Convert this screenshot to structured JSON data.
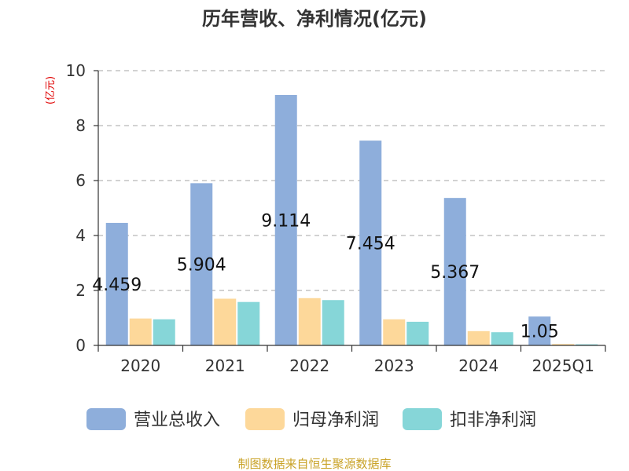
{
  "chart_data": {
    "type": "bar",
    "title": "历年营收、净利情况(亿元)",
    "ylabel": "(亿元)",
    "xlabel": "",
    "categories": [
      "2020",
      "2021",
      "2022",
      "2023",
      "2024",
      "2025Q1"
    ],
    "ylim": [
      0,
      10
    ],
    "yticks": [
      "0",
      "2",
      "4",
      "6",
      "8",
      "10"
    ],
    "grid": true,
    "legend_position": "bottom",
    "series": [
      {
        "name": "营业总收入",
        "color": "#8eaedb",
        "values": [
          4.459,
          5.904,
          9.114,
          7.454,
          5.367,
          1.05
        ],
        "data_labels": [
          "4.459",
          "5.904",
          "9.114",
          "7.454",
          "5.367",
          "1.05"
        ]
      },
      {
        "name": "归母净利润",
        "color": "#fdd89a",
        "values": [
          0.98,
          1.7,
          1.72,
          0.95,
          0.52,
          0.05
        ]
      },
      {
        "name": "扣非净利润",
        "color": "#86d6d8",
        "values": [
          0.95,
          1.58,
          1.65,
          0.86,
          0.48,
          0.04
        ]
      }
    ],
    "source": "制图数据来自恒生聚源数据库"
  }
}
